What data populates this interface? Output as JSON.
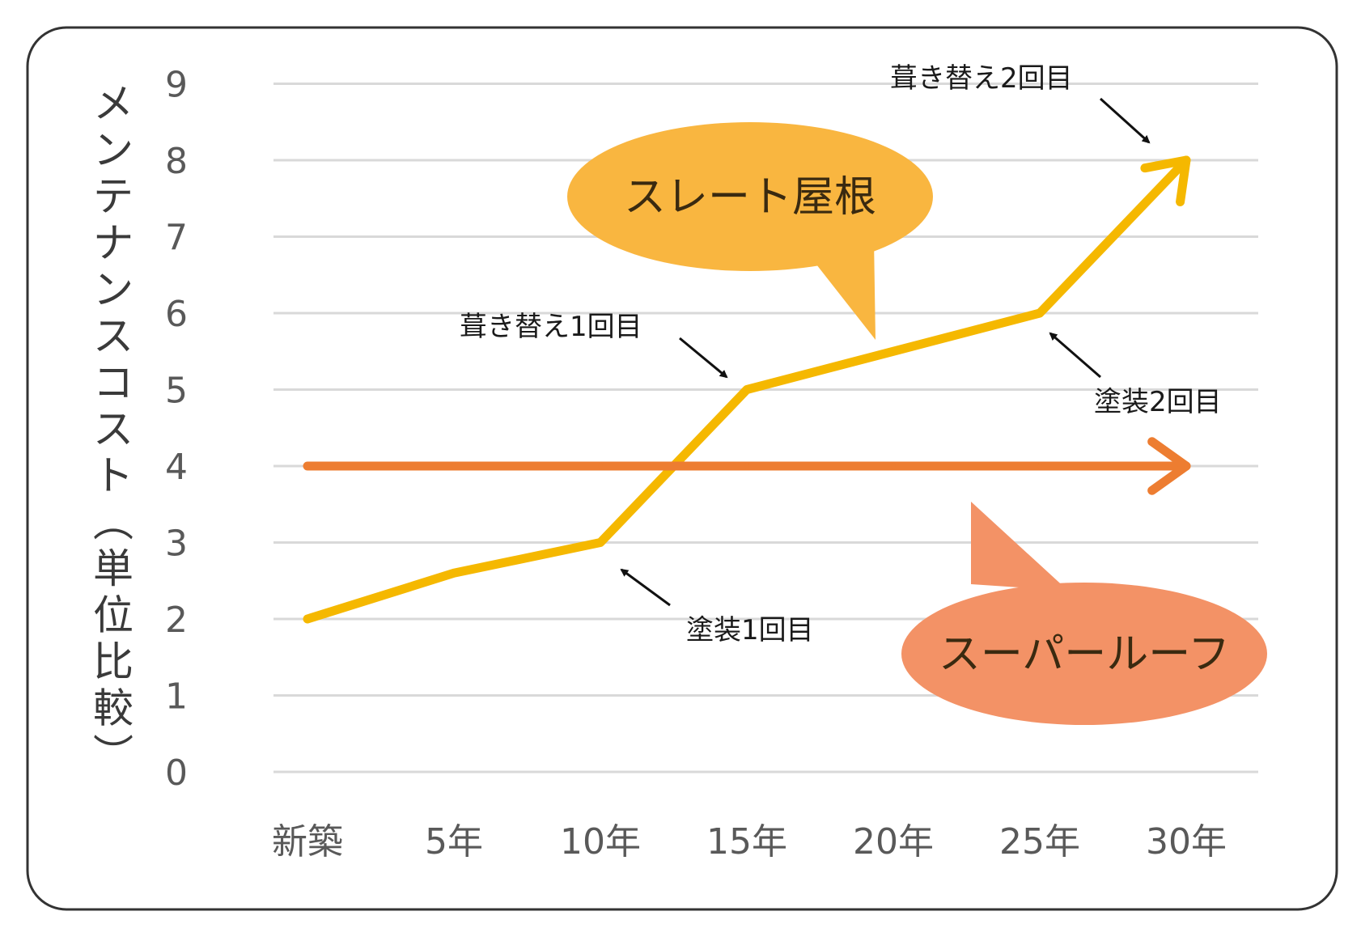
{
  "chart_data": {
    "type": "line",
    "ylabel": "メンテナンスコスト(単位比較)",
    "categories": [
      "新築",
      "5年",
      "10年",
      "15年",
      "20年",
      "25年",
      "30年"
    ],
    "ylim": [
      0,
      9
    ],
    "yticks": [
      "0",
      "1",
      "2",
      "3",
      "4",
      "5",
      "6",
      "7",
      "8",
      "9"
    ],
    "grid": true,
    "series": [
      {
        "name": "スレート屋根",
        "color": "#F5B800",
        "values": [
          2,
          2.6,
          3,
          5,
          5.5,
          6,
          8
        ]
      },
      {
        "name": "スーパールーフ",
        "color": "#ED7D31",
        "values": [
          4,
          4,
          4,
          4,
          4,
          4,
          4
        ]
      }
    ],
    "annotations": [
      {
        "text": "塗装1回目",
        "category": "10年",
        "value": 3
      },
      {
        "text": "葺き替え1回目",
        "category": "15年",
        "value": 5
      },
      {
        "text": "塗装2回目",
        "category": "25年",
        "value": 6
      },
      {
        "text": "葺き替え2回目",
        "category": "30年",
        "value": 8
      }
    ],
    "colors": {
      "slate_bubble": "#F9B640",
      "super_bubble": "#F39266",
      "grid": "#D9D9D9"
    }
  }
}
